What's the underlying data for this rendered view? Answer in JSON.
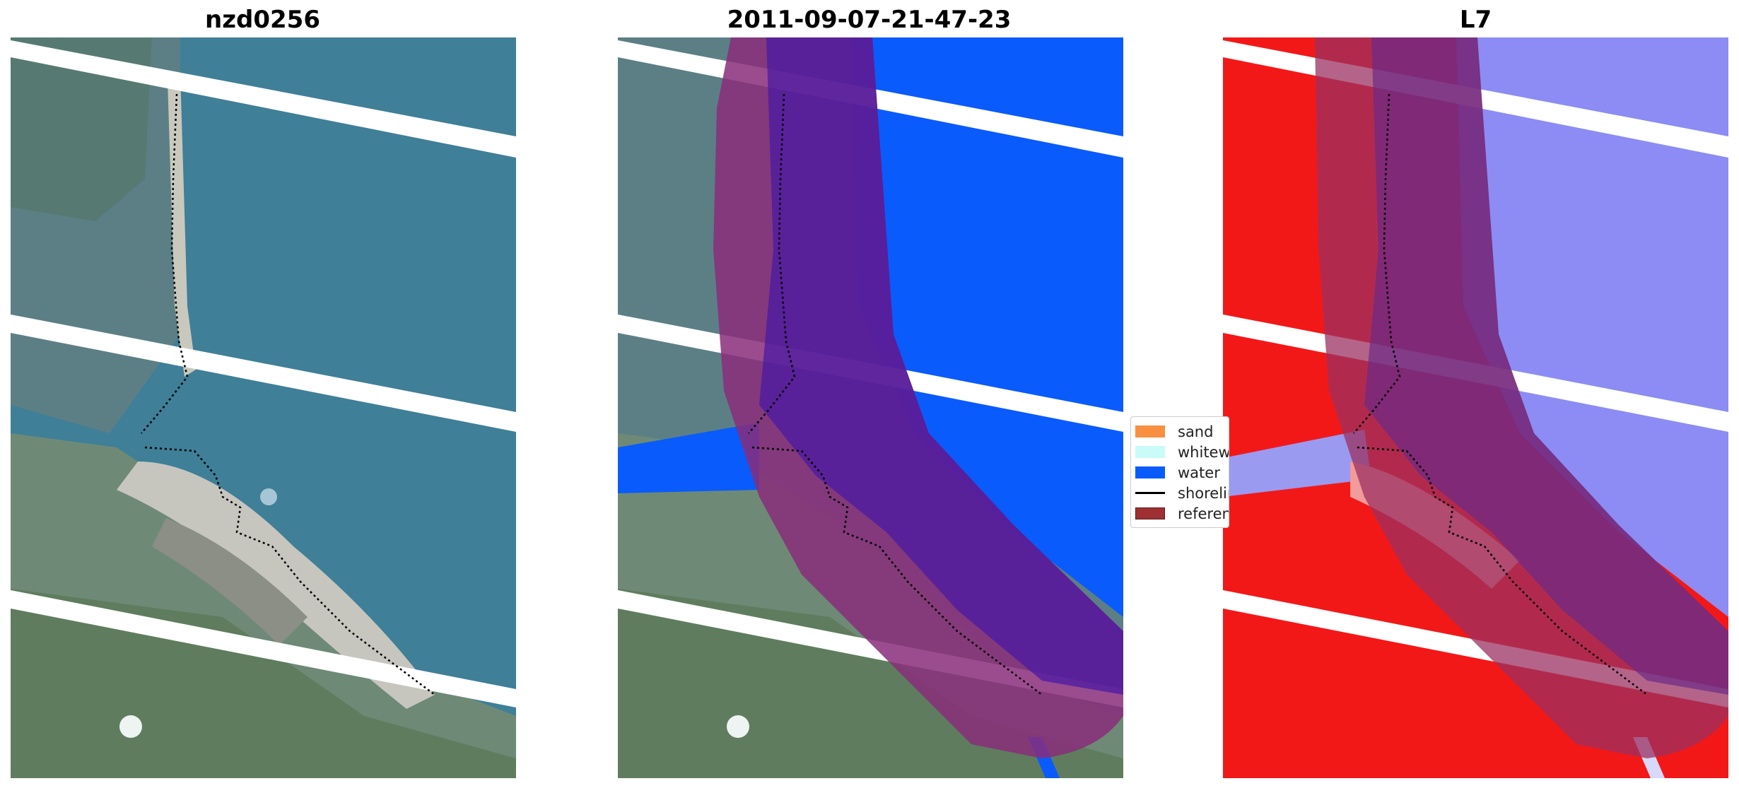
{
  "panels": [
    {
      "title": "nzd0256"
    },
    {
      "title": "2011-09-07-21-47-23"
    },
    {
      "title": "L7"
    }
  ],
  "legend": {
    "items": [
      {
        "label": "sand",
        "color": "#f79141",
        "kind": "patch"
      },
      {
        "label": "whitewater",
        "color": "#c9fbf8",
        "kind": "patch"
      },
      {
        "label": "water",
        "color": "#0a5bfb",
        "kind": "patch"
      },
      {
        "label": "shoreline",
        "color": "#000000",
        "kind": "line"
      },
      {
        "label": "reference",
        "color": "#9e3034",
        "kind": "patch"
      }
    ]
  },
  "colors": {
    "imagery_water": "#3f7f98",
    "classified_water": "#0a5bfb",
    "index_land": "#f31818",
    "index_water": "#8c8cf4",
    "reference_buffer": "#9b3040",
    "no_data_stripe": "#ffffff"
  }
}
